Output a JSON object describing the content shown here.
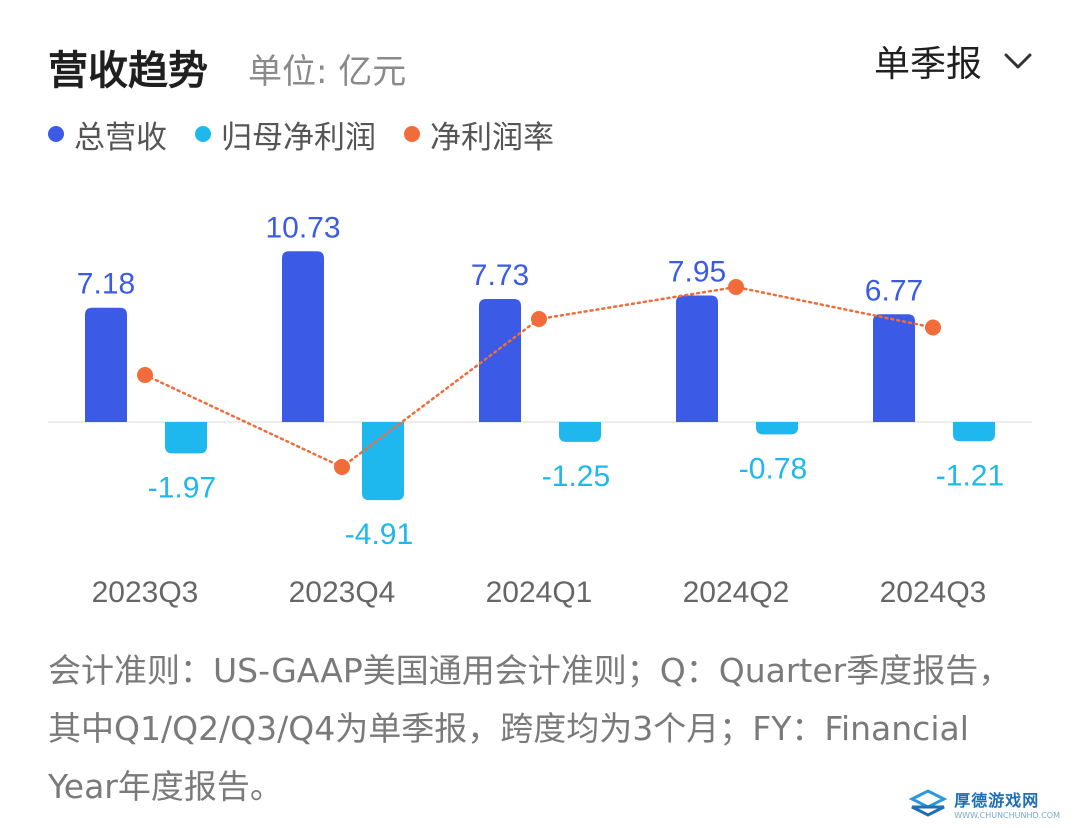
{
  "header": {
    "title": "营收趋势",
    "unit": "单位: 亿元",
    "period": "单季报",
    "period_icon": "chevron-down-icon"
  },
  "legend": [
    {
      "label": "总营收",
      "color": "#3b5be6"
    },
    {
      "label": "归母净利润",
      "color": "#1fb8ee"
    },
    {
      "label": "净利润率",
      "color": "#f26b3a"
    }
  ],
  "chart_data": {
    "type": "bar",
    "categories": [
      "2023Q3",
      "2023Q4",
      "2024Q1",
      "2024Q2",
      "2024Q3"
    ],
    "series": [
      {
        "name": "总营收",
        "type": "bar",
        "color": "#3b5be6",
        "values": [
          7.18,
          10.73,
          7.73,
          7.95,
          6.77
        ],
        "labels": [
          "7.18",
          "10.73",
          "7.73",
          "7.95",
          "6.77"
        ]
      },
      {
        "name": "归母净利润",
        "type": "bar",
        "color": "#1fb8ee",
        "values": [
          -1.97,
          -4.91,
          -1.25,
          -0.78,
          -1.21
        ],
        "labels": [
          "-1.97",
          "-4.91",
          "-1.25",
          "-0.78",
          "-1.21"
        ]
      },
      {
        "name": "净利润率",
        "type": "line",
        "color": "#f26b3a",
        "values": [
          -27.4,
          -45.8,
          -16.2,
          -9.8,
          -17.9
        ]
      }
    ],
    "ylim": [
      -5.2,
      11.5
    ],
    "rate_ylim": [
      -50,
      0
    ]
  },
  "footnote": "会计准则：US-GAAP美国通用会计准则；Q：Quarter季度报告，其中Q1/Q2/Q3/Q4为单季报，跨度均为3个月；FY：Financial Year年度报告。",
  "watermark": {
    "name": "厚德游戏网",
    "url": "WWW.CHUNCHUNHD.COM"
  }
}
